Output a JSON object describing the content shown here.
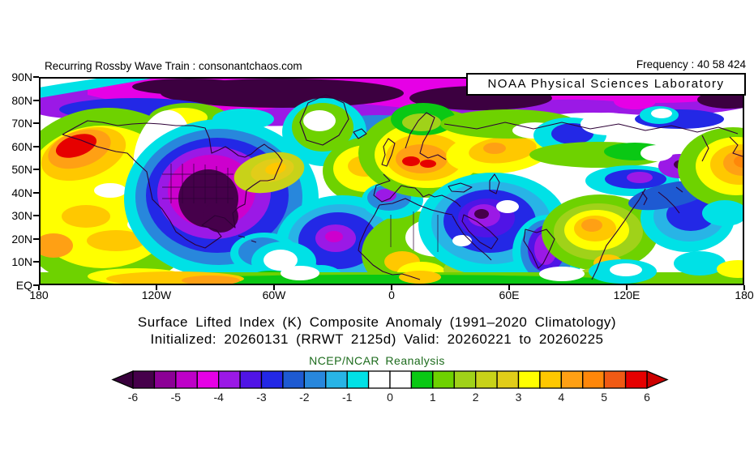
{
  "header": {
    "left_caption": "Recurring Rossby Wave Train : consonantchaos.com",
    "frequency_label": "Frequency : 40 58 424",
    "noaa_box_label": "NOAA Physical Sciences Laboratory"
  },
  "titles": {
    "line1": "Surface Lifted Index (K) Composite Anomaly (1991–2020 Climatology)",
    "line2": "Initialized: 20260131 (RRWT 2125d) Valid: 20260221 to 20260225"
  },
  "map_axes": {
    "y_tick_labels": [
      "90N",
      "80N",
      "70N",
      "60N",
      "50N",
      "40N",
      "30N",
      "20N",
      "10N",
      "EQ"
    ],
    "x_tick_labels": [
      "180",
      "120W",
      "60W",
      "0",
      "60E",
      "120E",
      "180"
    ]
  },
  "colorbar": {
    "label": "NCEP/NCAR Reanalysis",
    "label_color": "#1c6b1c",
    "tick_labels": [
      "-6",
      "-5",
      "-4",
      "-3",
      "-2",
      "-1",
      "0",
      "1",
      "2",
      "3",
      "4",
      "5",
      "6"
    ],
    "left_arrow_color": "#38003c",
    "right_arrow_color": "#cd0000"
  },
  "chart_data": {
    "type": "heatmap",
    "title": "Surface Lifted Index (K) Composite Anomaly (1991-2020 Climatology)",
    "subtitle": "Initialized: 20260131 (RRWT 2125d) Valid: 20260221 to 20260225",
    "source": "NCEP/NCAR Reanalysis",
    "units": "K",
    "x_axis": {
      "ticks": [
        "180",
        "120W",
        "60W",
        "0",
        "60E",
        "120E",
        "180"
      ],
      "range": "180W to 180E"
    },
    "y_axis": {
      "ticks": [
        "90N",
        "80N",
        "70N",
        "60N",
        "50N",
        "40N",
        "30N",
        "20N",
        "10N",
        "EQ"
      ],
      "range": "EQ to 90N"
    },
    "colorbar": {
      "tick_values": [
        -6,
        -5,
        -4,
        -3,
        -2,
        -1,
        0,
        1,
        2,
        3,
        4,
        5,
        6
      ],
      "segment_interval": 0.5,
      "colors": [
        "#46004b",
        "#8c0096",
        "#be00c8",
        "#e600e6",
        "#9b19e6",
        "#5014e6",
        "#2328e6",
        "#1e5ad2",
        "#2887dc",
        "#28b4e6",
        "#00e1e6",
        "#ffffff",
        "#ffffff",
        "#0ac814",
        "#6ed200",
        "#a0d219",
        "#c8d219",
        "#e1cd19",
        "#ffff00",
        "#ffc800",
        "#ffa014",
        "#ff870a",
        "#f05a14",
        "#e60000"
      ]
    },
    "anomaly_centers": [
      {
        "region": "Arctic cap 75N-90N, most longitudes",
        "approx_value_K": -6
      },
      {
        "region": "Central North America (US Plains)",
        "approx_value_K": -6
      },
      {
        "region": "Alaska / Bering Sea",
        "approx_value_K": 6
      },
      {
        "region": "Central-Eastern Europe",
        "approx_value_K": 6
      },
      {
        "region": "Western Russia",
        "approx_value_K": 4
      },
      {
        "region": "Atlantic east of Newfoundland",
        "approx_value_K": 4
      },
      {
        "region": "Central North Atlantic",
        "approx_value_K": -4
      },
      {
        "region": "Middle East / Southwest Asia",
        "approx_value_K": -4
      },
      {
        "region": "India",
        "approx_value_K": -4
      },
      {
        "region": "Tibet / China",
        "approx_value_K": 4
      },
      {
        "region": "Japan / Northwest Pacific",
        "approx_value_K": -3
      },
      {
        "region": "Mid-latitude Pacific near date line",
        "approx_value_K": 5
      },
      {
        "region": "Eastern tropical/NE Pacific",
        "approx_value_K": 3
      }
    ]
  }
}
